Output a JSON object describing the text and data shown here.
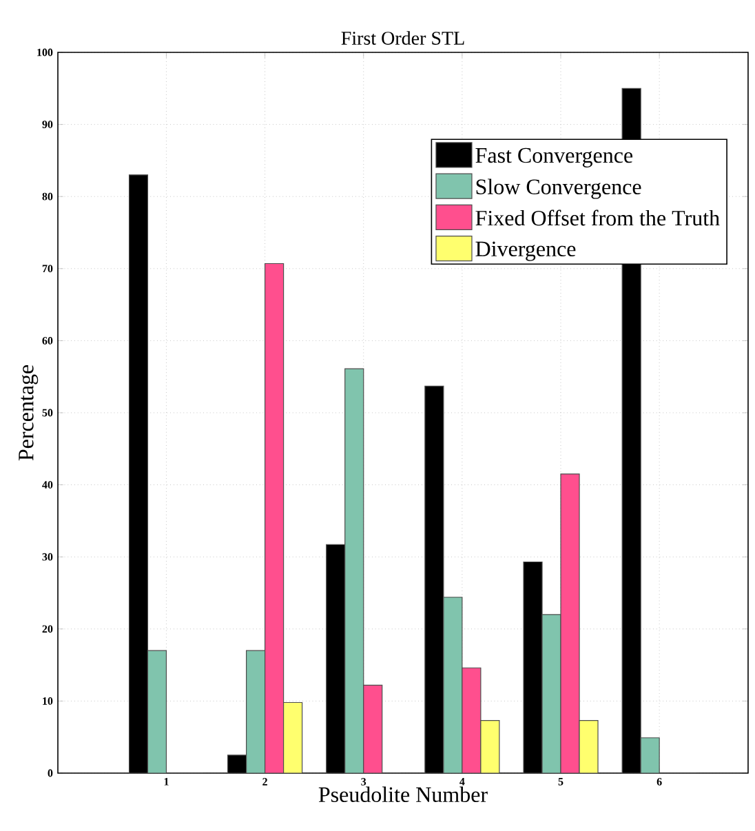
{
  "chart_data": {
    "type": "bar",
    "title": "First Order STL",
    "xlabel": "Pseudolite Number",
    "ylabel": "Percentage",
    "categories": [
      "1",
      "2",
      "3",
      "4",
      "5",
      "6"
    ],
    "series": [
      {
        "name": "Fast Convergence",
        "color": "#000000",
        "values": [
          83,
          2.5,
          31.7,
          53.7,
          29.3,
          95
        ]
      },
      {
        "name": "Slow Convergence",
        "color": "#80c4ad",
        "values": [
          17,
          17,
          56.1,
          24.4,
          22,
          4.9
        ]
      },
      {
        "name": "Fixed Offset from the Truth",
        "color": "#ff4f8e",
        "values": [
          0,
          70.7,
          12.2,
          14.6,
          41.5,
          0
        ]
      },
      {
        "name": "Divergence",
        "color": "#ffff6e",
        "values": [
          0,
          9.8,
          0,
          7.3,
          7.3,
          0
        ]
      }
    ],
    "ylim": [
      0,
      100
    ],
    "yticks": [
      0,
      10,
      20,
      30,
      40,
      50,
      60,
      70,
      80,
      90,
      100
    ],
    "grid": true,
    "legend": "top right"
  }
}
